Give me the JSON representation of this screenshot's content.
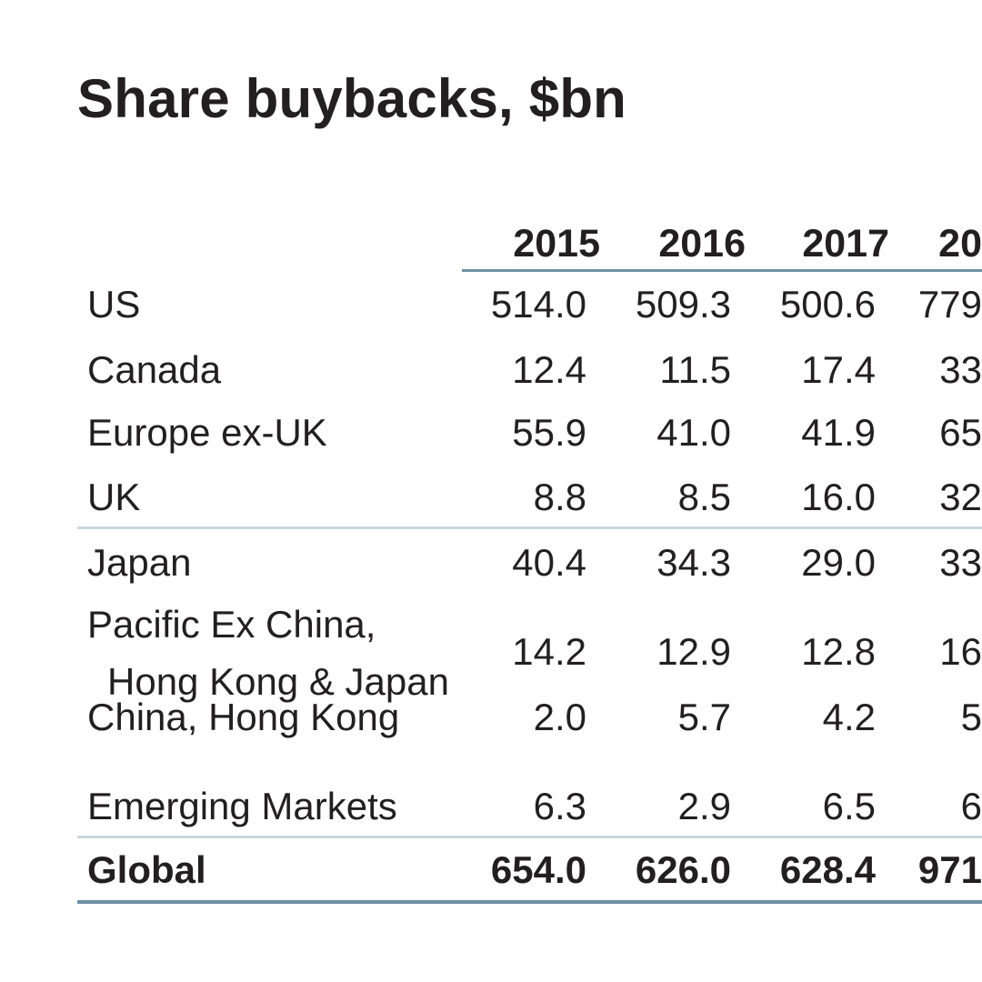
{
  "colors": {
    "background": "#ffffff",
    "text": "#231f20",
    "rule_dark": "#6e90a4",
    "rule_light": "#c9d6dd"
  },
  "chart_data": {
    "type": "table",
    "title": "Share buybacks, $bn",
    "columns": [
      "2015",
      "2016",
      "2017",
      "20"
    ],
    "rows": [
      {
        "label": "US",
        "values": [
          "514.0",
          "509.3",
          "500.6",
          "779"
        ]
      },
      {
        "label": "Canada",
        "values": [
          "12.4",
          "11.5",
          "17.4",
          "33"
        ]
      },
      {
        "label": "Europe ex-UK",
        "values": [
          "55.9",
          "41.0",
          "41.9",
          "65"
        ]
      },
      {
        "label": "UK",
        "values": [
          "8.8",
          "8.5",
          "16.0",
          "32"
        ]
      },
      {
        "label": "Japan",
        "values": [
          "40.4",
          "34.3",
          "29.0",
          "33"
        ]
      },
      {
        "label": "Pacific Ex China,",
        "label_line2": "Hong Kong & Japan",
        "values": [
          "14.2",
          "12.9",
          "12.8",
          "16"
        ]
      },
      {
        "label": "China, Hong Kong",
        "values": [
          "2.0",
          "5.7",
          "4.2",
          "5"
        ]
      },
      {
        "label": "Emerging Markets",
        "values": [
          "6.3",
          "2.9",
          "6.5",
          "6"
        ]
      },
      {
        "label": "Global",
        "values": [
          "654.0",
          "626.0",
          "628.4",
          "971"
        ],
        "total": true
      }
    ]
  }
}
